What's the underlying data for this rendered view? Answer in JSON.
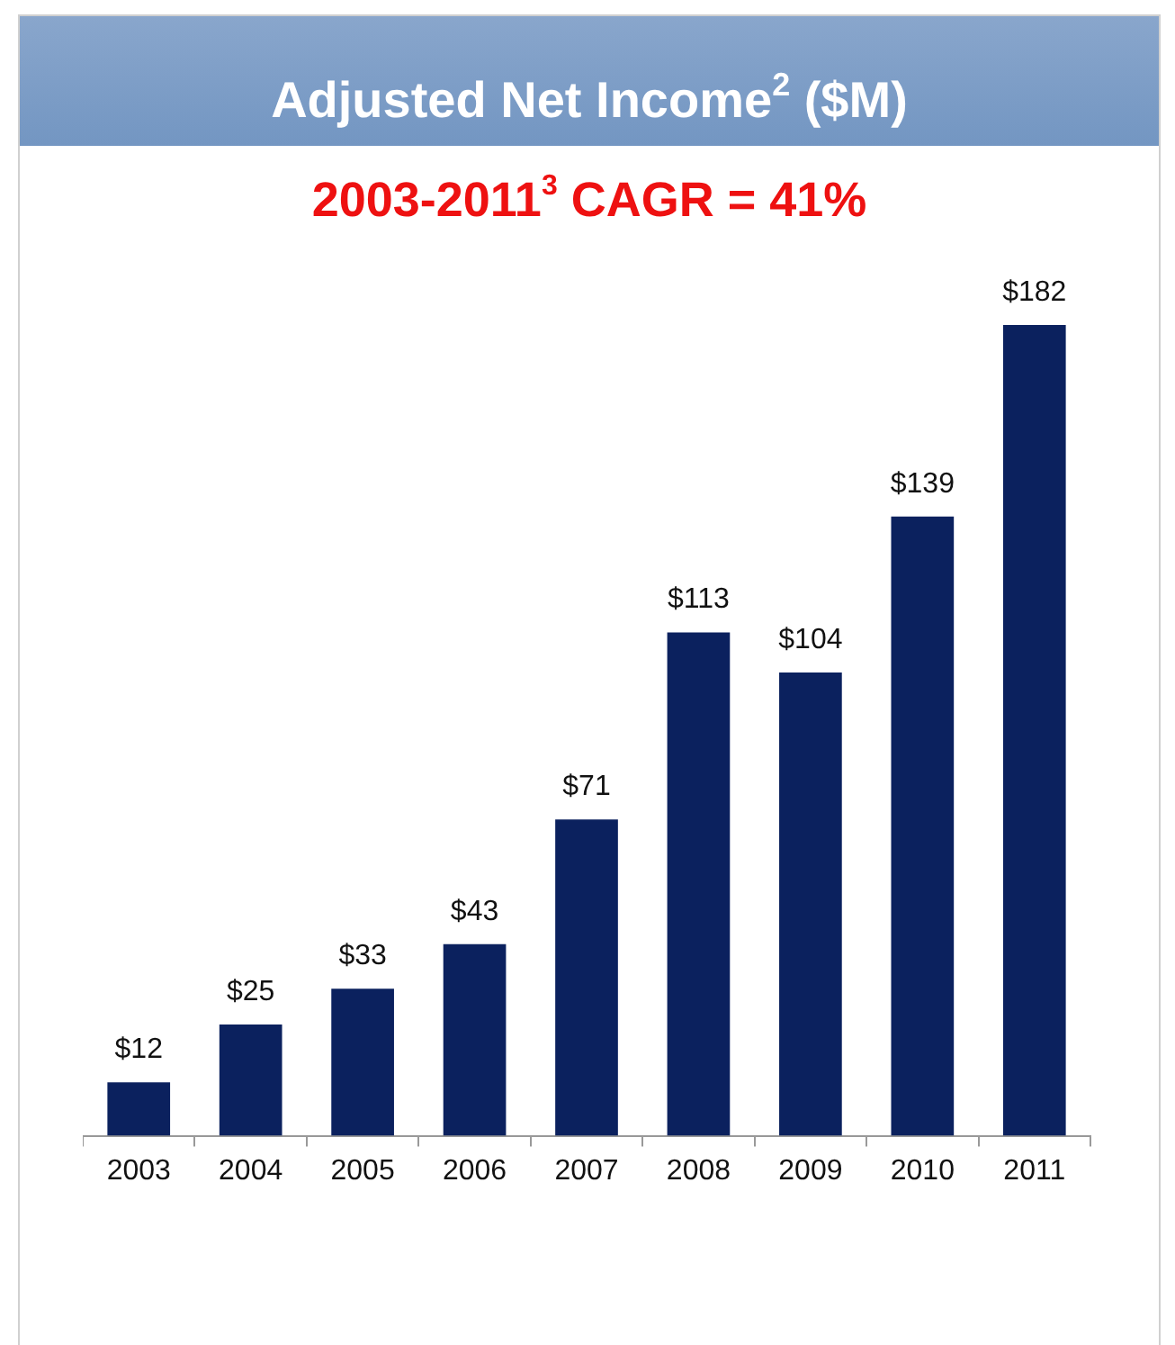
{
  "chart_data": {
    "type": "bar",
    "title": "Adjusted Net Income$^{2}$ ($M)",
    "subtitle": "2003-2011$^{3}$ CAGR = 41%",
    "categories": [
      "2003",
      "2004",
      "2005",
      "2006",
      "2007",
      "2008",
      "2009",
      "2010",
      "2011"
    ],
    "values": [
      12,
      25,
      33,
      43,
      71,
      113,
      104,
      139,
      182
    ],
    "value_labels": [
      "$12",
      "$25",
      "$33",
      "$43",
      "$71",
      "$113",
      "$104",
      "$139",
      "$182"
    ],
    "color": "#0b215e",
    "grid": false,
    "legend": false
  }
}
